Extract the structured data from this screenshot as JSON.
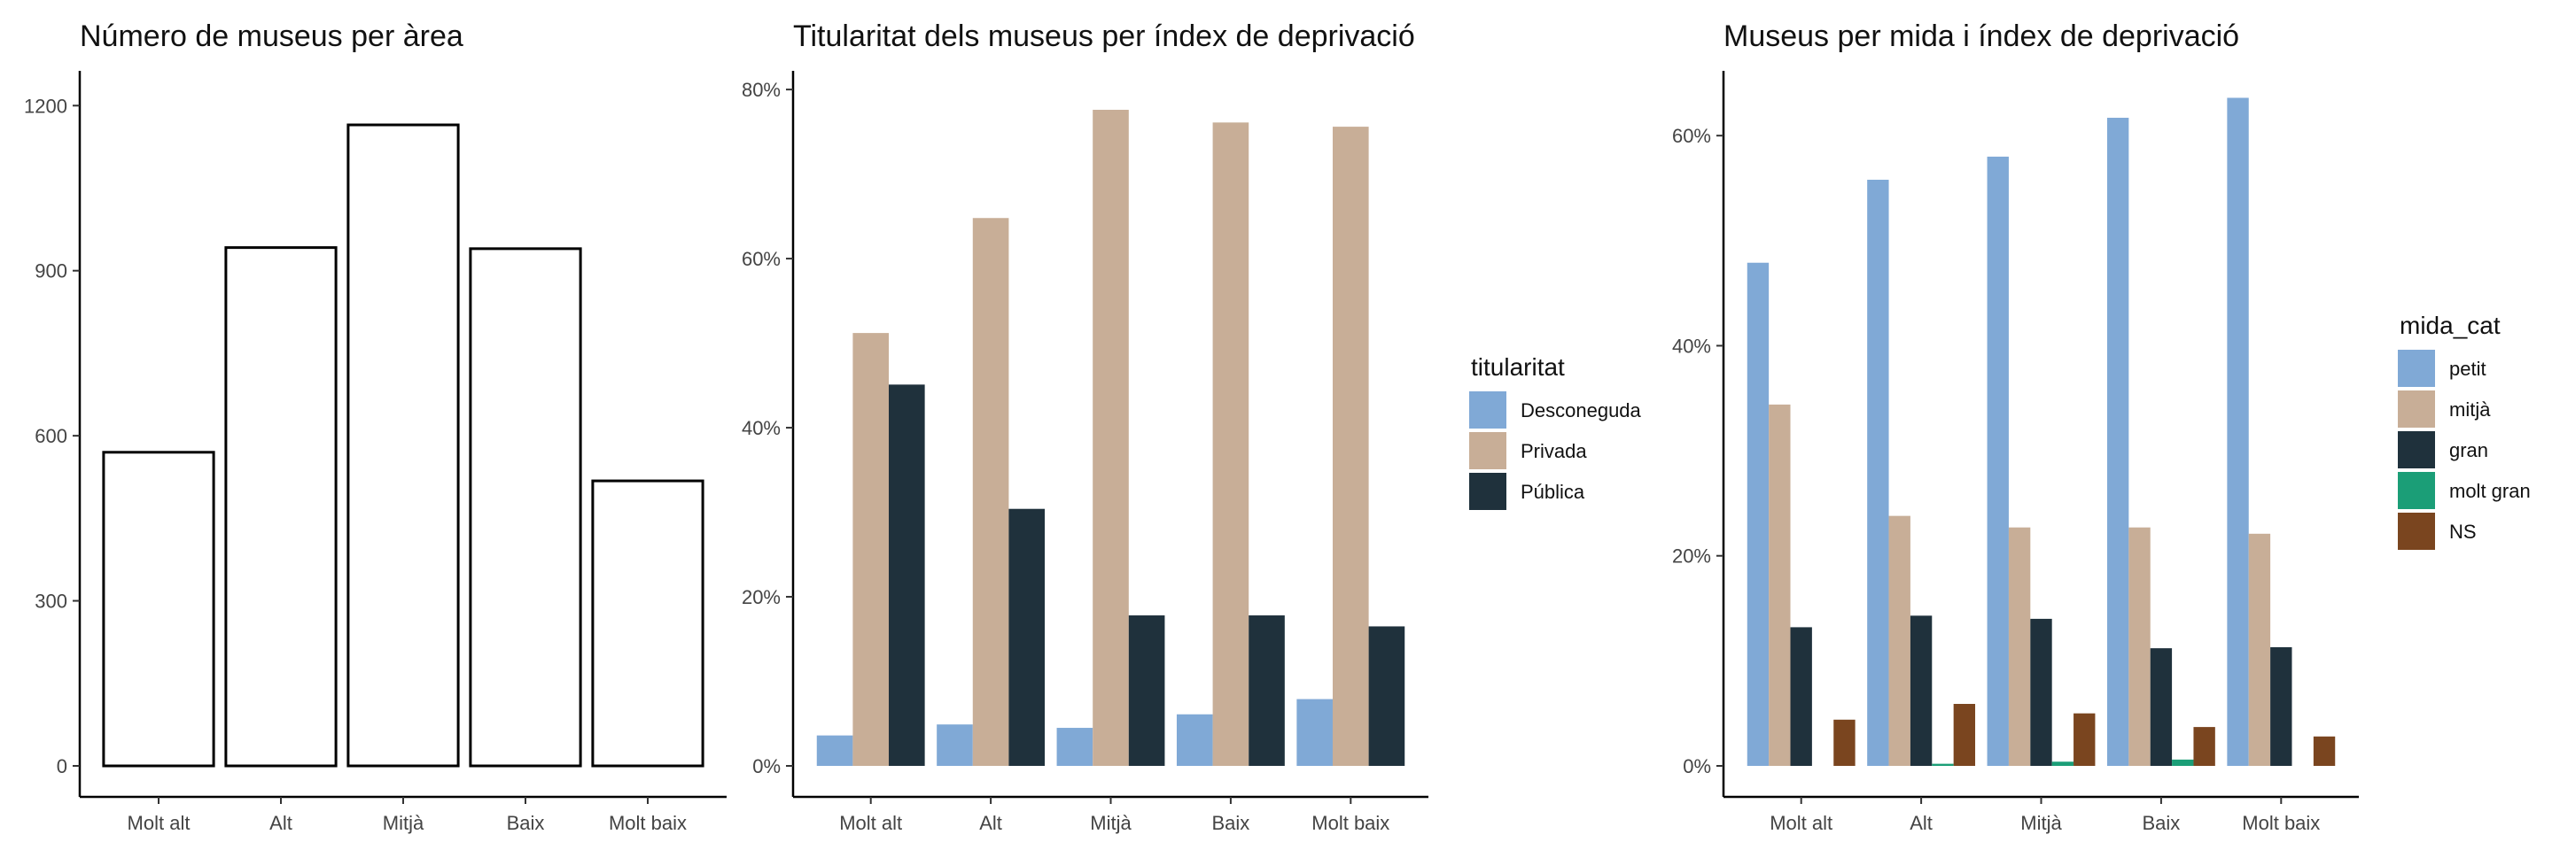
{
  "chart_data": [
    {
      "type": "bar",
      "title": "Número de museus per àrea",
      "xlabel": "",
      "ylabel": "",
      "categories": [
        "Molt alt",
        "Alt",
        "Mitjà",
        "Baix",
        "Molt baix"
      ],
      "values": [
        570,
        942,
        1165,
        940,
        518
      ],
      "ylim": [
        0,
        1260
      ],
      "yticks": [
        0,
        300,
        600,
        900,
        1200
      ],
      "ytick_labels": [
        "0",
        "300",
        "600",
        "900",
        "1200"
      ],
      "fill": "#ffffff",
      "stroke": "#000000",
      "grid": false
    },
    {
      "type": "bar",
      "title": "Titularitat dels museus per índex de deprivació",
      "xlabel": "",
      "ylabel": "",
      "categories": [
        "Molt alt",
        "Alt",
        "Mitjà",
        "Baix",
        "Molt baix"
      ],
      "legend_title": "titularitat",
      "legend_position": "right",
      "series": [
        {
          "name": "Desconeguda",
          "color": "#80a9d6",
          "values": [
            3.6,
            4.9,
            4.5,
            6.1,
            7.9
          ]
        },
        {
          "name": "Privada",
          "color": "#c8ae97",
          "values": [
            51.2,
            64.8,
            77.6,
            76.1,
            75.6
          ]
        },
        {
          "name": "Pública",
          "color": "#1f313c",
          "values": [
            45.1,
            30.4,
            17.8,
            17.8,
            16.5
          ]
        }
      ],
      "ylim": [
        0,
        82
      ],
      "yticks": [
        0,
        20,
        40,
        60,
        80
      ],
      "ytick_labels": [
        "0%",
        "20%",
        "40%",
        "60%",
        "80%"
      ],
      "grid": false
    },
    {
      "type": "bar",
      "title": "Museus per mida i índex de deprivació",
      "xlabel": "",
      "ylabel": "",
      "categories": [
        "Molt alt",
        "Alt",
        "Mitjà",
        "Baix",
        "Molt baix"
      ],
      "legend_title": "mida_cat",
      "legend_position": "right",
      "series": [
        {
          "name": "petit",
          "color": "#80a9d6",
          "values": [
            47.9,
            55.8,
            58.0,
            61.7,
            63.6
          ]
        },
        {
          "name": "mitjà",
          "color": "#c8ae97",
          "values": [
            34.4,
            23.8,
            22.7,
            22.7,
            22.1
          ]
        },
        {
          "name": "gran",
          "color": "#1f313c",
          "values": [
            13.2,
            14.3,
            14.0,
            11.2,
            11.3
          ]
        },
        {
          "name": "molt gran",
          "color": "#1b9e77",
          "values": [
            0,
            0.2,
            0.4,
            0.6,
            0
          ]
        },
        {
          "name": "NS",
          "color": "#7a451f",
          "values": [
            4.4,
            5.9,
            5.0,
            3.7,
            2.8
          ]
        }
      ],
      "ylim": [
        0,
        66
      ],
      "yticks": [
        0,
        20,
        40,
        60
      ],
      "ytick_labels": [
        "0%",
        "20%",
        "40%",
        "60%"
      ],
      "grid": false
    }
  ]
}
